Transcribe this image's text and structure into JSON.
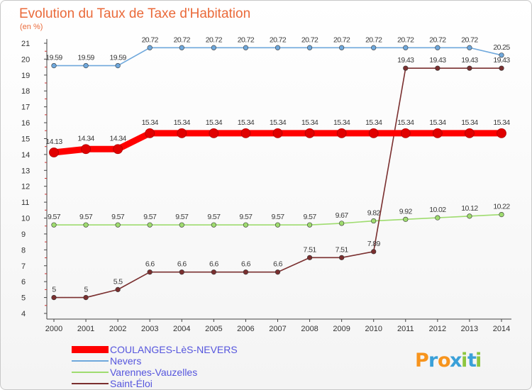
{
  "chart_data": {
    "type": "line",
    "title": "Evolution du Taux de Taxe d'Habitation",
    "subtitle": "(en %)",
    "x": [
      "2000",
      "2001",
      "2002",
      "2003",
      "2004",
      "2005",
      "2006",
      "2007",
      "2008",
      "2009",
      "2010",
      "2011",
      "2012",
      "2013",
      "2014"
    ],
    "ylim": [
      4,
      21
    ],
    "yticks": [
      "4",
      "5",
      "6",
      "7",
      "8",
      "9",
      "10",
      "11",
      "12",
      "13",
      "14",
      "15",
      "16",
      "17",
      "18",
      "19",
      "20",
      "21"
    ],
    "grid": false,
    "legend_position": "bottom-left",
    "series": [
      {
        "name": "COULANGES-LèS-NEVERS",
        "color": "#ff0000",
        "emphasis": "thick",
        "values": [
          14.13,
          14.34,
          14.34,
          15.34,
          15.34,
          15.34,
          15.34,
          15.34,
          15.34,
          15.34,
          15.34,
          15.34,
          15.34,
          15.34,
          15.34
        ],
        "labels": [
          "14.13",
          "14.34",
          "14.34",
          "15.34",
          "15.34",
          "15.34",
          "15.34",
          "15.34",
          "15.34",
          "15.34",
          "15.34",
          "15.34",
          "15.34",
          "15.34",
          "15.34"
        ]
      },
      {
        "name": "Nevers",
        "color": "#6fa8dc",
        "values": [
          19.59,
          19.59,
          19.59,
          20.72,
          20.72,
          20.72,
          20.72,
          20.72,
          20.72,
          20.72,
          20.72,
          20.72,
          20.72,
          20.72,
          20.25
        ],
        "labels": [
          "19.59",
          "19.59",
          "19.59",
          "20.72",
          "20.72",
          "20.72",
          "20.72",
          "20.72",
          "20.72",
          "20.72",
          "20.72",
          "20.72",
          "20.72",
          "20.72",
          "20.25"
        ]
      },
      {
        "name": "Varennes-Vauzelles",
        "color": "#9fdc6f",
        "values": [
          9.57,
          9.57,
          9.57,
          9.57,
          9.57,
          9.57,
          9.57,
          9.57,
          9.57,
          9.67,
          9.82,
          9.92,
          10.02,
          10.12,
          10.22
        ],
        "labels": [
          "9.57",
          "9.57",
          "9.57",
          "9.57",
          "9.57",
          "9.57",
          "9.57",
          "9.57",
          "9.57",
          "9.67",
          "9.82",
          "9.92",
          "10.02",
          "10.12",
          "10.22"
        ]
      },
      {
        "name": "Saint-Éloi",
        "color": "#7a2f2f",
        "values": [
          5,
          5,
          5.5,
          6.6,
          6.6,
          6.6,
          6.6,
          6.6,
          7.51,
          7.51,
          7.89,
          19.43,
          19.43,
          19.43,
          19.43
        ],
        "labels": [
          "5",
          "5",
          "5.5",
          "6.6",
          "6.6",
          "6.6",
          "6.6",
          "6.6",
          "7.51",
          "7.51",
          "7.89",
          "19.43",
          "19.43",
          "19.43",
          "19.43"
        ]
      }
    ]
  },
  "logo": {
    "letters": [
      "P",
      "r",
      "o",
      "x",
      "i",
      "t",
      "i"
    ],
    "colors": [
      "#f7941d",
      "#3aa0d8",
      "#f7941d",
      "#3aa0d8",
      "#8dc63f",
      "#3aa0d8",
      "#8dc63f"
    ]
  }
}
